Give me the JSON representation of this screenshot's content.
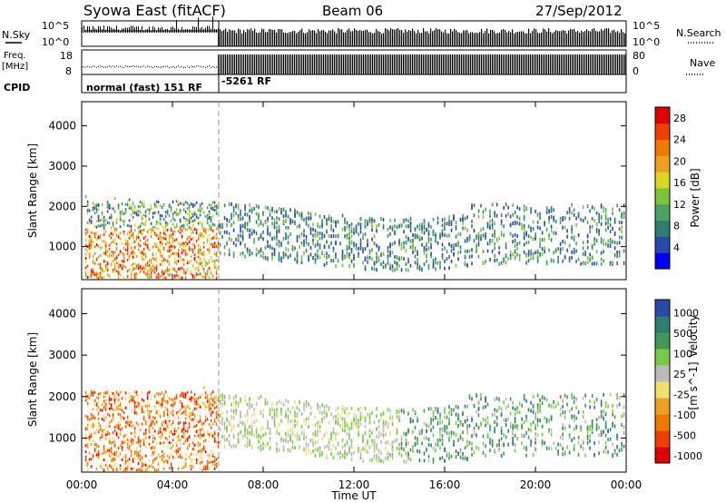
{
  "header": {
    "title": "Syowa East (fitACF)",
    "beam": "Beam 06",
    "date": "27/Sep/2012"
  },
  "status_panels": {
    "nsky_label": "N.Sky",
    "nsearch_label": "N.Search",
    "freq_label_1": "Freq.",
    "freq_label_2": "[MHz]",
    "nave_label": "Nave",
    "cpid_label": "CPID",
    "left_ticks_top": [
      "10^5",
      "10^0"
    ],
    "right_ticks_top": [
      "10^5",
      "10^0"
    ],
    "left_ticks_freq": [
      "18",
      "8"
    ],
    "right_ticks_nave": [
      "80",
      "0"
    ],
    "cpid_segments": [
      "normal (fast) 151 RF",
      "-5261 RF"
    ]
  },
  "colors": {
    "power_scale": [
      "#0000ff",
      "#2a4aa8",
      "#2f7d6e",
      "#4ca060",
      "#7bc33a",
      "#d8d820",
      "#f0a020",
      "#f07a00",
      "#f04000",
      "#e00000"
    ],
    "velocity_scale": [
      "#e00000",
      "#f04000",
      "#f07a00",
      "#f0a020",
      "#f0e070",
      "#bbbbbb",
      "#77cc44",
      "#3f9a55",
      "#2f7d6e",
      "#2a4aa8"
    ]
  },
  "chart_data": [
    {
      "type": "heatmap",
      "name": "Power panel",
      "x_ticks": [
        "00:00",
        "04:00",
        "08:00",
        "12:00",
        "16:00",
        "20:00",
        "00:00"
      ],
      "xlim": [
        0,
        24
      ],
      "ylabel": "Slant Range [km]",
      "y_ticks": [
        "1000",
        "2000",
        "3000",
        "4000"
      ],
      "ylim": [
        180,
        4600
      ],
      "colorbar_label": "Power [dB]",
      "colorbar_ticks": [
        "4",
        "8",
        "12",
        "16",
        "20",
        "24",
        "28"
      ],
      "value_range": [
        0,
        30
      ]
    },
    {
      "type": "heatmap",
      "name": "Velocity panel",
      "x_ticks": [
        "00:00",
        "04:00",
        "08:00",
        "12:00",
        "16:00",
        "20:00",
        "00:00"
      ],
      "xlim": [
        0,
        24
      ],
      "xlabel": "Time UT",
      "ylabel": "Slant Range [km]",
      "y_ticks": [
        "1000",
        "2000",
        "3000",
        "4000"
      ],
      "ylim": [
        180,
        4600
      ],
      "colorbar_label": "Velocity",
      "colorbar_unit": "[m s^-1]",
      "colorbar_ticks": [
        "1000",
        "500",
        "100",
        "25",
        "-25",
        "-100",
        "-500",
        "-1000"
      ]
    }
  ]
}
